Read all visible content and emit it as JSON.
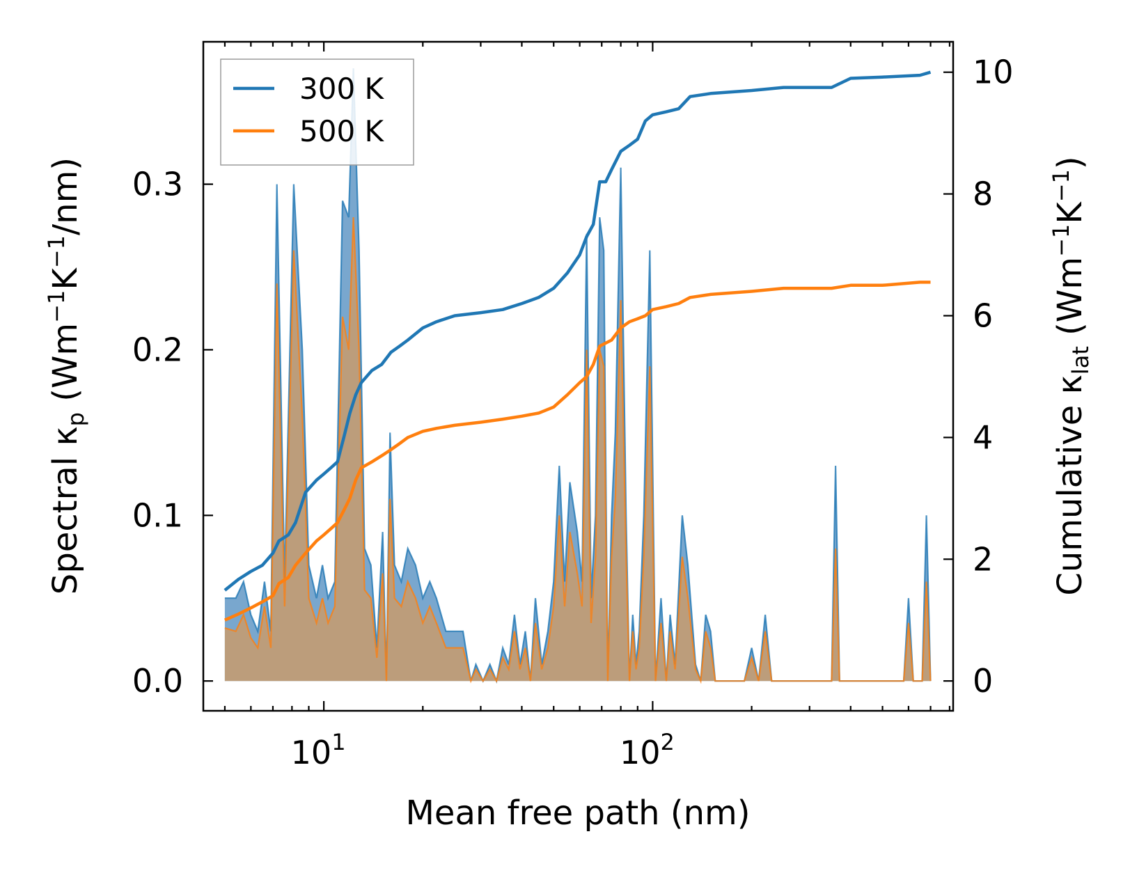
{
  "chart_data": {
    "type": "area",
    "xlabel": "Mean free path (nm)",
    "ylabel_left": {
      "base": "Spectral κ",
      "sub": "p",
      "unit_prefix": " (Wm",
      "exp1": "−1",
      "mid": "K",
      "exp2": "−1",
      "suffix": "/nm)"
    },
    "ylabel_right": {
      "base": "Cumulative κ",
      "sub": "lat",
      "unit_prefix": " (Wm",
      "exp1": "−1",
      "mid": "K",
      "exp2": "−1",
      "suffix": ")"
    },
    "x_scale": "log",
    "xlim": [
      4.3,
      820
    ],
    "x_ticks": [
      {
        "value": 10,
        "base": "10",
        "exp": "1"
      },
      {
        "value": 100,
        "base": "10",
        "exp": "2"
      }
    ],
    "ylim_left": [
      -0.018,
      0.386
    ],
    "y_ticks_left": [
      "0.0",
      "0.1",
      "0.2",
      "0.3"
    ],
    "ylim_right": [
      -0.49,
      10.5
    ],
    "y_ticks_right": [
      "0",
      "2",
      "4",
      "6",
      "8",
      "10"
    ],
    "legend_position": "top-left",
    "colors": {
      "c300": "#1f77b4",
      "c500": "#ff7f0e",
      "fill300": "#6a9dc9",
      "fill500": "#c89b6c"
    },
    "series": [
      {
        "name": "300 K",
        "color": "#1f77b4",
        "spectral": [
          [
            5,
            0.05
          ],
          [
            5.4,
            0.05
          ],
          [
            5.7,
            0.06
          ],
          [
            6.0,
            0.04
          ],
          [
            6.3,
            0.03
          ],
          [
            6.6,
            0.06
          ],
          [
            6.9,
            0.03
          ],
          [
            7.2,
            0.3
          ],
          [
            7.6,
            0.06
          ],
          [
            8.1,
            0.3
          ],
          [
            8.6,
            0.2
          ],
          [
            9.0,
            0.07
          ],
          [
            9.5,
            0.05
          ],
          [
            9.9,
            0.07
          ],
          [
            10.3,
            0.05
          ],
          [
            10.8,
            0.06
          ],
          [
            11.4,
            0.29
          ],
          [
            11.9,
            0.28
          ],
          [
            12.3,
            0.37
          ],
          [
            12.8,
            0.26
          ],
          [
            13.3,
            0.08
          ],
          [
            13.9,
            0.07
          ],
          [
            14.5,
            0.02
          ],
          [
            15.1,
            0.09
          ],
          [
            15.5,
            0.0
          ],
          [
            15.9,
            0.15
          ],
          [
            16.4,
            0.07
          ],
          [
            17.2,
            0.06
          ],
          [
            18.0,
            0.08
          ],
          [
            19.0,
            0.07
          ],
          [
            20.0,
            0.05
          ],
          [
            21.0,
            0.06
          ],
          [
            22.0,
            0.05
          ],
          [
            23.5,
            0.03
          ],
          [
            25.0,
            0.03
          ],
          [
            26.5,
            0.03
          ],
          [
            28.0,
            0.0
          ],
          [
            29.0,
            0.01
          ],
          [
            30.5,
            0.0
          ],
          [
            32.0,
            0.01
          ],
          [
            33.5,
            0.0
          ],
          [
            35.0,
            0.02
          ],
          [
            36.5,
            0.01
          ],
          [
            38.0,
            0.04
          ],
          [
            39.5,
            0.01
          ],
          [
            41.0,
            0.03
          ],
          [
            42.5,
            0.0
          ],
          [
            44.0,
            0.05
          ],
          [
            46.0,
            0.01
          ],
          [
            48.0,
            0.03
          ],
          [
            50.0,
            0.06
          ],
          [
            52.0,
            0.13
          ],
          [
            54.0,
            0.06
          ],
          [
            56.0,
            0.12
          ],
          [
            59.0,
            0.09
          ],
          [
            61.0,
            0.06
          ],
          [
            63.0,
            0.27
          ],
          [
            65.0,
            0.05
          ],
          [
            67.0,
            0.1
          ],
          [
            69.0,
            0.28
          ],
          [
            71.0,
            0.26
          ],
          [
            73.0,
            0.0
          ],
          [
            75.0,
            0.1
          ],
          [
            77.0,
            0.15
          ],
          [
            80.0,
            0.31
          ],
          [
            83.0,
            0.1
          ],
          [
            85.0,
            0.0
          ],
          [
            87.0,
            0.04
          ],
          [
            89.0,
            0.01
          ],
          [
            91.0,
            0.03
          ],
          [
            94.0,
            0.1
          ],
          [
            98.0,
            0.26
          ],
          [
            102.0,
            0.0
          ],
          [
            106.0,
            0.05
          ],
          [
            110.0,
            0.0
          ],
          [
            113.0,
            0.04
          ],
          [
            117.0,
            0.01
          ],
          [
            123.0,
            0.1
          ],
          [
            128.0,
            0.07
          ],
          [
            135.0,
            0.01
          ],
          [
            140.0,
            0.0
          ],
          [
            145.0,
            0.04
          ],
          [
            150.0,
            0.03
          ],
          [
            155.0,
            0.0
          ],
          [
            190.0,
            0.0
          ],
          [
            200.0,
            0.02
          ],
          [
            210.0,
            0.0
          ],
          [
            220.0,
            0.04
          ],
          [
            230.0,
            0.0
          ],
          [
            350.0,
            0.0
          ],
          [
            360.0,
            0.13
          ],
          [
            370.0,
            0.0
          ],
          [
            580.0,
            0.0
          ],
          [
            600.0,
            0.05
          ],
          [
            620.0,
            0.0
          ],
          [
            660.0,
            0.0
          ],
          [
            680.0,
            0.1
          ],
          [
            700.0,
            0.0
          ]
        ],
        "cumulative": [
          [
            5,
            1.49
          ],
          [
            5.5,
            1.67
          ],
          [
            6.0,
            1.8
          ],
          [
            6.5,
            1.9
          ],
          [
            7.0,
            2.1
          ],
          [
            7.3,
            2.3
          ],
          [
            7.8,
            2.4
          ],
          [
            8.2,
            2.6
          ],
          [
            8.8,
            3.1
          ],
          [
            9.5,
            3.3
          ],
          [
            10.0,
            3.4
          ],
          [
            10.5,
            3.5
          ],
          [
            11.0,
            3.6
          ],
          [
            11.5,
            4.0
          ],
          [
            12.0,
            4.4
          ],
          [
            12.5,
            4.7
          ],
          [
            13.0,
            4.9
          ],
          [
            14.0,
            5.1
          ],
          [
            15.0,
            5.2
          ],
          [
            16.0,
            5.4
          ],
          [
            17.0,
            5.5
          ],
          [
            18.0,
            5.6
          ],
          [
            20.0,
            5.8
          ],
          [
            22.0,
            5.9
          ],
          [
            25.0,
            6.0
          ],
          [
            30.0,
            6.05
          ],
          [
            35.0,
            6.1
          ],
          [
            40.0,
            6.2
          ],
          [
            45.0,
            6.3
          ],
          [
            50.0,
            6.45
          ],
          [
            55.0,
            6.7
          ],
          [
            60.0,
            7.0
          ],
          [
            63.0,
            7.3
          ],
          [
            66.0,
            7.5
          ],
          [
            69.0,
            8.2
          ],
          [
            72.0,
            8.2
          ],
          [
            75.0,
            8.4
          ],
          [
            80.0,
            8.7
          ],
          [
            85.0,
            8.8
          ],
          [
            90.0,
            8.9
          ],
          [
            95.0,
            9.2
          ],
          [
            100.0,
            9.3
          ],
          [
            110.0,
            9.35
          ],
          [
            120.0,
            9.4
          ],
          [
            130.0,
            9.6
          ],
          [
            150.0,
            9.65
          ],
          [
            200.0,
            9.7
          ],
          [
            250.0,
            9.75
          ],
          [
            350.0,
            9.75
          ],
          [
            400.0,
            9.9
          ],
          [
            500.0,
            9.92
          ],
          [
            650.0,
            9.95
          ],
          [
            700.0,
            10.0
          ]
        ]
      },
      {
        "name": "500 K",
        "color": "#ff7f0e",
        "spectral": [
          [
            5,
            0.032
          ],
          [
            5.4,
            0.03
          ],
          [
            5.7,
            0.04
          ],
          [
            6.0,
            0.026
          ],
          [
            6.3,
            0.02
          ],
          [
            6.6,
            0.045
          ],
          [
            6.9,
            0.02
          ],
          [
            7.2,
            0.24
          ],
          [
            7.6,
            0.045
          ],
          [
            8.1,
            0.26
          ],
          [
            8.6,
            0.16
          ],
          [
            9.0,
            0.05
          ],
          [
            9.5,
            0.035
          ],
          [
            9.9,
            0.05
          ],
          [
            10.3,
            0.035
          ],
          [
            10.8,
            0.045
          ],
          [
            11.4,
            0.22
          ],
          [
            11.9,
            0.2
          ],
          [
            12.3,
            0.28
          ],
          [
            12.8,
            0.2
          ],
          [
            13.3,
            0.055
          ],
          [
            13.9,
            0.05
          ],
          [
            14.5,
            0.014
          ],
          [
            15.1,
            0.065
          ],
          [
            15.5,
            0.0
          ],
          [
            15.9,
            0.11
          ],
          [
            16.4,
            0.05
          ],
          [
            17.2,
            0.045
          ],
          [
            18.0,
            0.06
          ],
          [
            19.0,
            0.05
          ],
          [
            20.0,
            0.035
          ],
          [
            21.0,
            0.045
          ],
          [
            22.0,
            0.035
          ],
          [
            23.5,
            0.02
          ],
          [
            25.0,
            0.02
          ],
          [
            26.5,
            0.02
          ],
          [
            28.0,
            0.0
          ],
          [
            29.0,
            0.007
          ],
          [
            30.5,
            0.0
          ],
          [
            32.0,
            0.007
          ],
          [
            33.5,
            0.0
          ],
          [
            35.0,
            0.014
          ],
          [
            36.5,
            0.007
          ],
          [
            38.0,
            0.03
          ],
          [
            39.5,
            0.007
          ],
          [
            41.0,
            0.02
          ],
          [
            42.5,
            0.0
          ],
          [
            44.0,
            0.035
          ],
          [
            46.0,
            0.007
          ],
          [
            48.0,
            0.02
          ],
          [
            50.0,
            0.045
          ],
          [
            52.0,
            0.1
          ],
          [
            54.0,
            0.045
          ],
          [
            56.0,
            0.09
          ],
          [
            59.0,
            0.065
          ],
          [
            61.0,
            0.045
          ],
          [
            63.0,
            0.2
          ],
          [
            65.0,
            0.035
          ],
          [
            67.0,
            0.075
          ],
          [
            69.0,
            0.2
          ],
          [
            71.0,
            0.19
          ],
          [
            73.0,
            0.0
          ],
          [
            75.0,
            0.075
          ],
          [
            77.0,
            0.11
          ],
          [
            80.0,
            0.23
          ],
          [
            83.0,
            0.075
          ],
          [
            85.0,
            0.0
          ],
          [
            87.0,
            0.03
          ],
          [
            89.0,
            0.007
          ],
          [
            91.0,
            0.02
          ],
          [
            94.0,
            0.075
          ],
          [
            98.0,
            0.19
          ],
          [
            102.0,
            0.0
          ],
          [
            106.0,
            0.035
          ],
          [
            110.0,
            0.0
          ],
          [
            113.0,
            0.03
          ],
          [
            117.0,
            0.007
          ],
          [
            123.0,
            0.075
          ],
          [
            128.0,
            0.05
          ],
          [
            135.0,
            0.007
          ],
          [
            140.0,
            0.0
          ],
          [
            145.0,
            0.03
          ],
          [
            150.0,
            0.02
          ],
          [
            155.0,
            0.0
          ],
          [
            190.0,
            0.0
          ],
          [
            200.0,
            0.014
          ],
          [
            210.0,
            0.0
          ],
          [
            220.0,
            0.03
          ],
          [
            230.0,
            0.0
          ],
          [
            350.0,
            0.0
          ],
          [
            360.0,
            0.08
          ],
          [
            370.0,
            0.0
          ],
          [
            580.0,
            0.0
          ],
          [
            600.0,
            0.035
          ],
          [
            620.0,
            0.0
          ],
          [
            660.0,
            0.0
          ],
          [
            680.0,
            0.06
          ],
          [
            700.0,
            0.0
          ]
        ],
        "cumulative": [
          [
            5,
            1.0
          ],
          [
            5.5,
            1.1
          ],
          [
            6.0,
            1.2
          ],
          [
            6.5,
            1.3
          ],
          [
            7.0,
            1.4
          ],
          [
            7.3,
            1.6
          ],
          [
            7.8,
            1.7
          ],
          [
            8.2,
            1.9
          ],
          [
            8.8,
            2.1
          ],
          [
            9.5,
            2.3
          ],
          [
            10.0,
            2.4
          ],
          [
            10.5,
            2.5
          ],
          [
            11.0,
            2.6
          ],
          [
            11.5,
            2.8
          ],
          [
            12.0,
            3.0
          ],
          [
            12.5,
            3.3
          ],
          [
            13.0,
            3.5
          ],
          [
            14.0,
            3.6
          ],
          [
            15.0,
            3.7
          ],
          [
            16.0,
            3.8
          ],
          [
            17.0,
            3.9
          ],
          [
            18.0,
            4.0
          ],
          [
            20.0,
            4.1
          ],
          [
            22.0,
            4.15
          ],
          [
            25.0,
            4.2
          ],
          [
            30.0,
            4.25
          ],
          [
            35.0,
            4.3
          ],
          [
            40.0,
            4.35
          ],
          [
            45.0,
            4.4
          ],
          [
            50.0,
            4.5
          ],
          [
            55.0,
            4.7
          ],
          [
            60.0,
            4.9
          ],
          [
            63.0,
            5.0
          ],
          [
            66.0,
            5.2
          ],
          [
            69.0,
            5.5
          ],
          [
            72.0,
            5.55
          ],
          [
            75.0,
            5.6
          ],
          [
            80.0,
            5.8
          ],
          [
            85.0,
            5.9
          ],
          [
            90.0,
            5.95
          ],
          [
            95.0,
            6.0
          ],
          [
            100.0,
            6.1
          ],
          [
            110.0,
            6.15
          ],
          [
            120.0,
            6.2
          ],
          [
            130.0,
            6.3
          ],
          [
            150.0,
            6.35
          ],
          [
            200.0,
            6.4
          ],
          [
            250.0,
            6.45
          ],
          [
            350.0,
            6.45
          ],
          [
            400.0,
            6.5
          ],
          [
            500.0,
            6.5
          ],
          [
            650.0,
            6.55
          ],
          [
            700.0,
            6.55
          ]
        ]
      }
    ]
  }
}
